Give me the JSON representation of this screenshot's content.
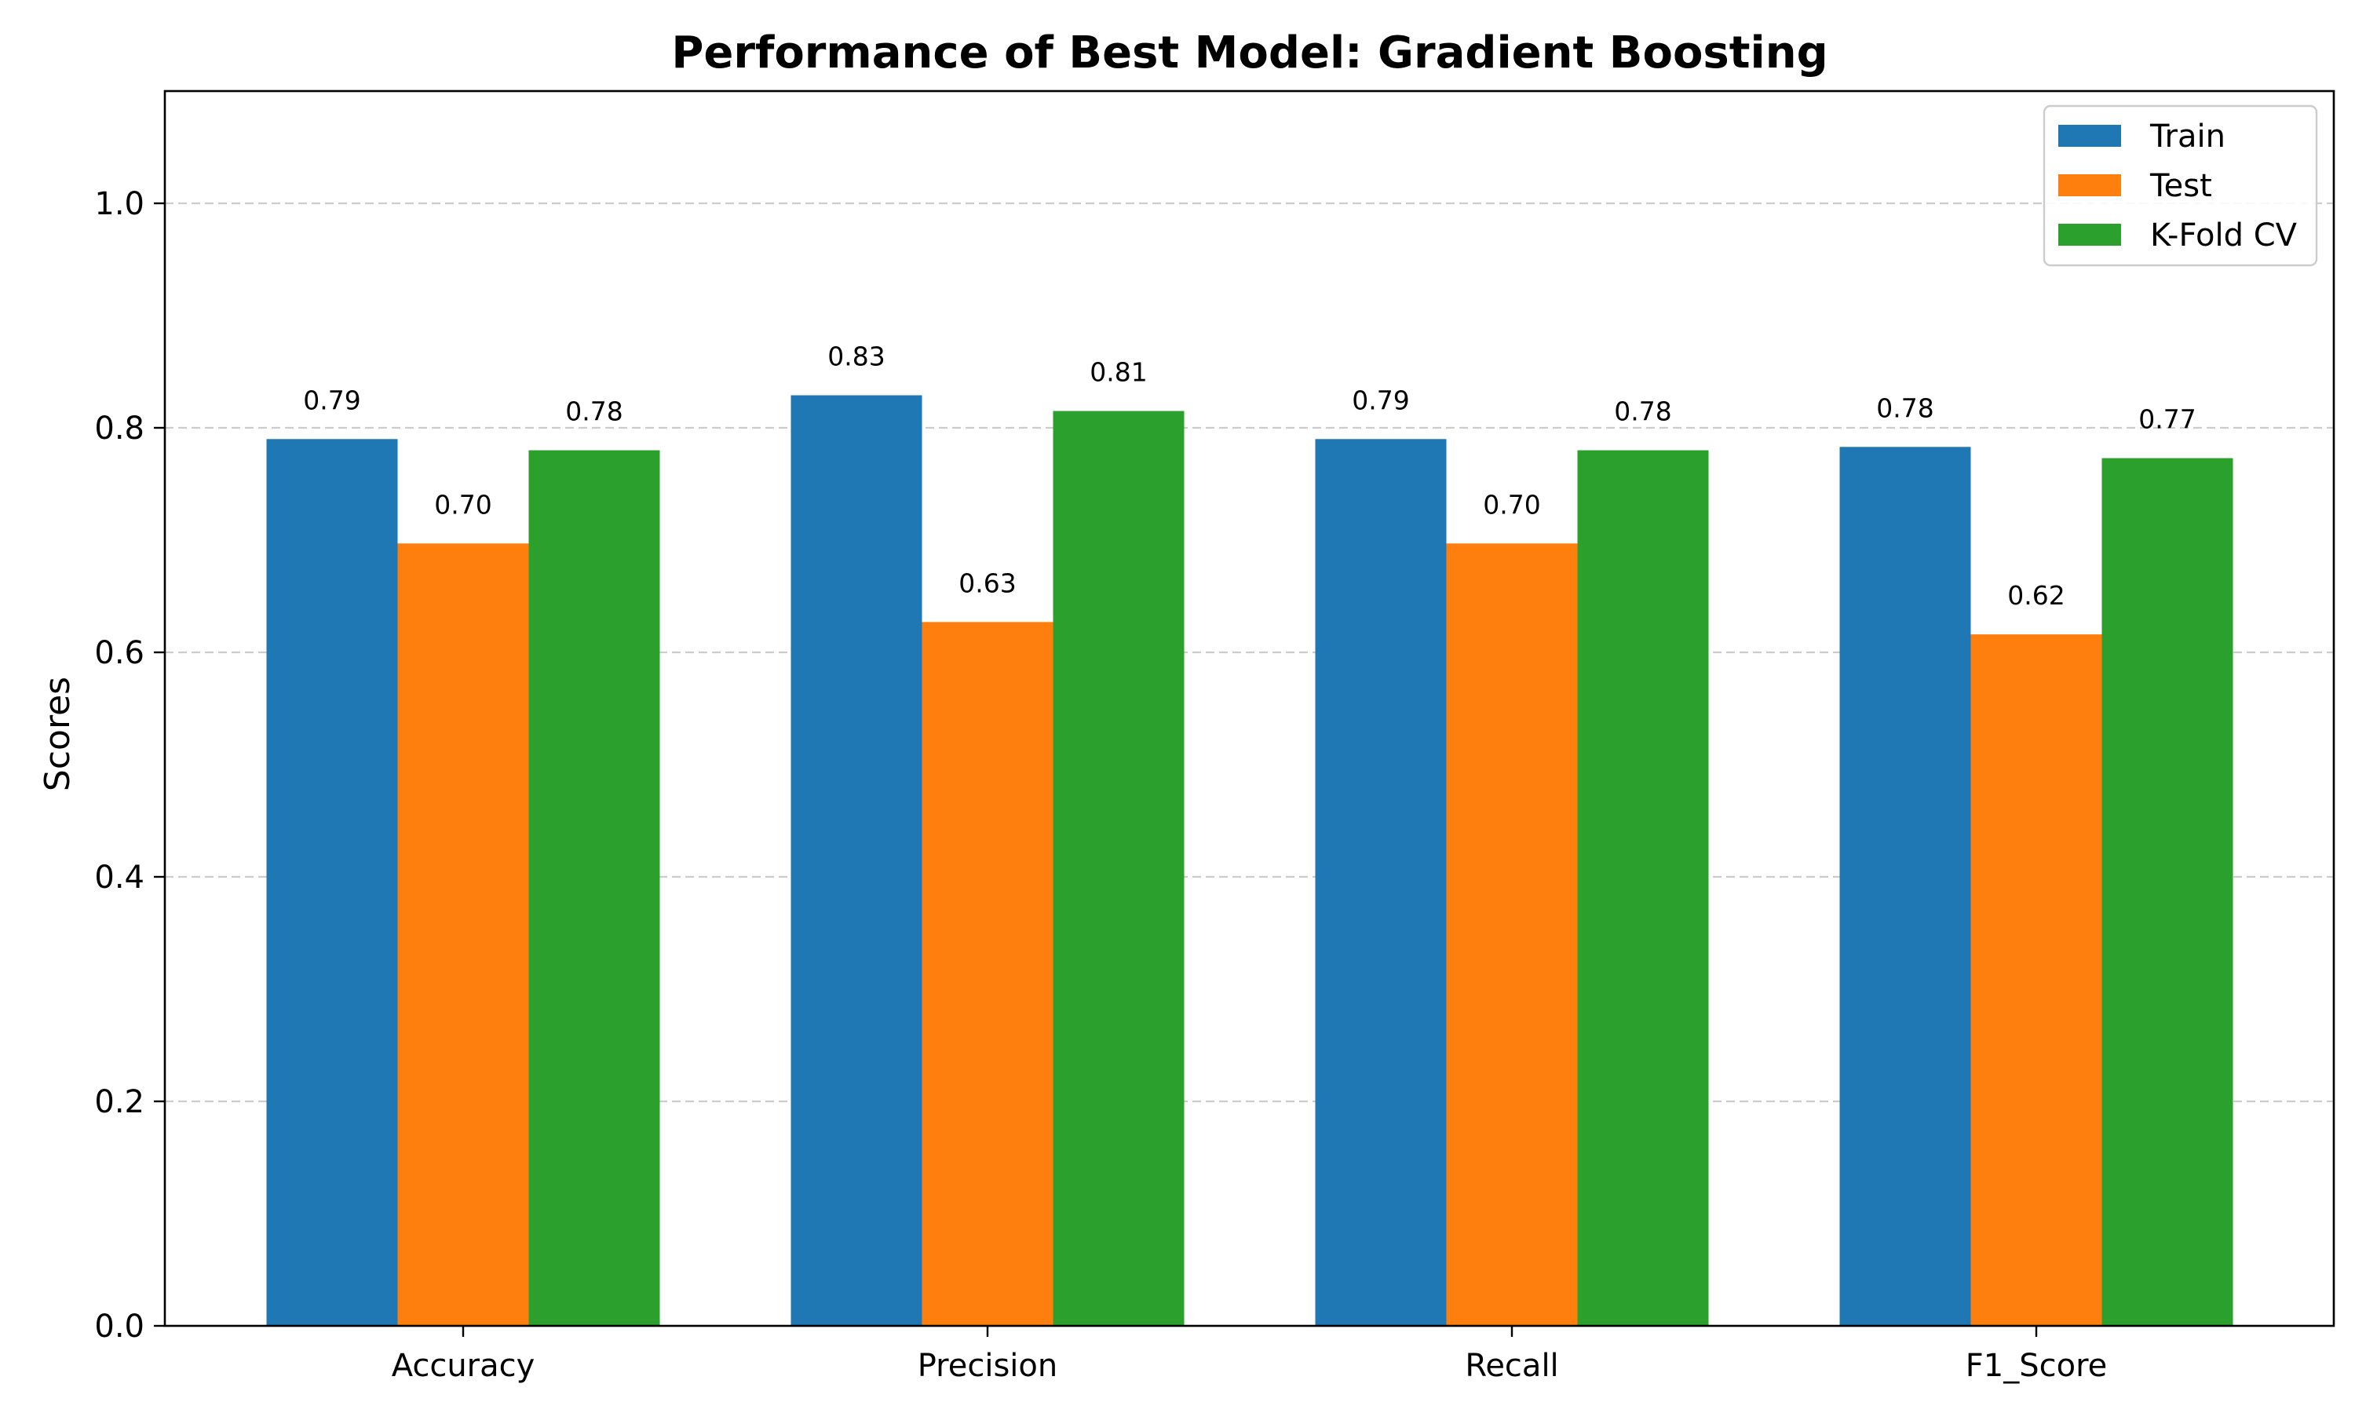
{
  "chart_data": {
    "type": "bar",
    "title": "Performance of Best Model: Gradient Boosting",
    "xlabel": "",
    "ylabel": "Scores",
    "categories": [
      "Accuracy",
      "Precision",
      "Recall",
      "F1_Score"
    ],
    "series": [
      {
        "name": "Train",
        "color": "#1f77b4",
        "values": [
          0.79,
          0.829,
          0.79,
          0.783
        ],
        "labels": [
          "0.79",
          "0.83",
          "0.79",
          "0.78"
        ]
      },
      {
        "name": "Test",
        "color": "#ff7f0e",
        "values": [
          0.697,
          0.627,
          0.697,
          0.616
        ],
        "labels": [
          "0.70",
          "0.63",
          "0.70",
          "0.62"
        ]
      },
      {
        "name": "K-Fold CV",
        "color": "#2ca02c",
        "values": [
          0.78,
          0.815,
          0.78,
          0.773
        ],
        "labels": [
          "0.78",
          "0.81",
          "0.78",
          "0.77"
        ]
      }
    ],
    "ylim": [
      0,
      1.1
    ],
    "yticks": [
      "0.0",
      "0.2",
      "0.4",
      "0.6",
      "0.8",
      "1.0"
    ],
    "grid": "y-dashed",
    "legend_position": "top-right"
  }
}
